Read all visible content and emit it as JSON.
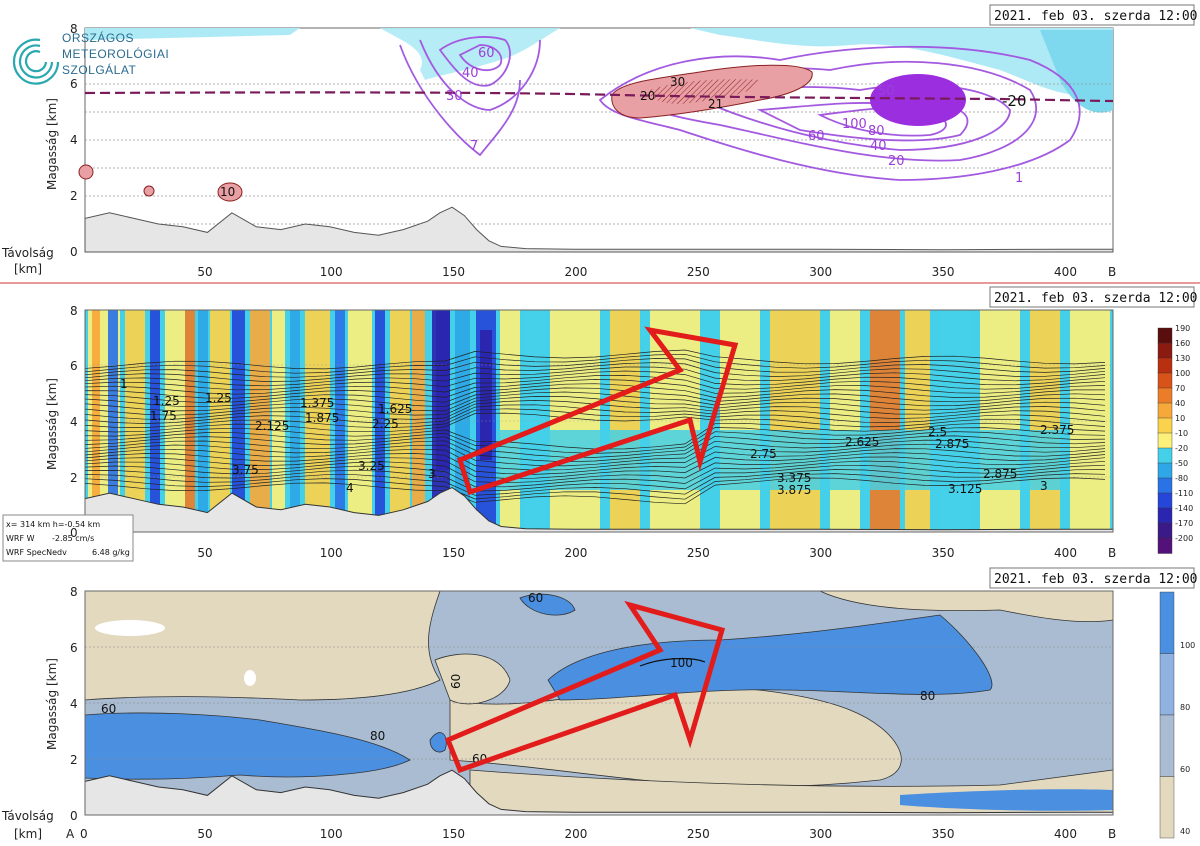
{
  "logo": {
    "lines": [
      "ORSZÁGOS",
      "METEOROLÓGIAI",
      "SZOLGÁLAT"
    ]
  },
  "x_ticks": [
    "50",
    "100",
    "150",
    "200",
    "250",
    "300",
    "350",
    "400"
  ],
  "x_end_label": "B",
  "x_start_label": "A",
  "x_zero_label": "0",
  "distance_label": "Távolság",
  "km_label": "[km]",
  "y_label": "Magasság [km]",
  "y_ticks": [
    "0",
    "2",
    "4",
    "6",
    "8"
  ],
  "panels": [
    {
      "title": "2021. feb 03. szerda 12:00"
    },
    {
      "title": "2021. feb 03. szerda 12:00"
    },
    {
      "title": "2021. feb 03. szerda 12:00"
    }
  ],
  "info_box": {
    "line1": "x= 314 km h=-0.54 km",
    "line2_label": "WRF W",
    "line2_value": "-2.85 cm/s",
    "line3_label": "WRF SpecNedv",
    "line3_value": "6.48 g/kg"
  },
  "colorbar2": {
    "labels": [
      "190",
      "160",
      "130",
      "100",
      "70",
      "40",
      "10",
      "-10",
      "-20",
      "-50",
      "-80",
      "-110",
      "-140",
      "-170",
      "-200"
    ],
    "colors": [
      "#5a0d0d",
      "#8b1a10",
      "#b8300f",
      "#d8531a",
      "#ec7d28",
      "#f6a83a",
      "#fbd24b",
      "#fbf07a",
      "#44d0e8",
      "#2da7e6",
      "#2a73e6",
      "#2546d8",
      "#2a26b0",
      "#3a1a86",
      "#52127a"
    ]
  },
  "colorbar3": {
    "labels": [
      "100",
      "80",
      "60",
      "40"
    ],
    "colors": [
      "#4a8fe0",
      "#8fb2e0",
      "#a9bcd2",
      "#e2d9bf"
    ]
  },
  "contour_labels_top": [
    "60",
    "40",
    "30",
    "7",
    "20",
    "30",
    "21",
    "50",
    "100",
    "80",
    "60",
    "40",
    "20",
    "1",
    "-20",
    "10"
  ],
  "contour_labels_mid": [
    "1",
    "1.25",
    "1.75",
    "1.25",
    "1.375",
    "1.625",
    "2.125",
    "1.875",
    "2.25",
    "3.75",
    "3",
    "4",
    "3.25",
    "2.75",
    "2.625",
    "2.5",
    "2.875",
    "2.375",
    "2.875",
    "3",
    "3.375",
    "3.125",
    "3.875"
  ],
  "contour_labels_bot": [
    "60",
    "80",
    "60",
    "100",
    "80",
    "60",
    "60",
    "80"
  ],
  "chart_data": [
    {
      "type": "area",
      "title": "2021. feb 03. szerda 12:00",
      "xlabel": "Távolság [km]",
      "ylabel": "Magasság [km]",
      "xlim": [
        0,
        420
      ],
      "ylim": [
        0,
        8
      ],
      "x_ticks": [
        50,
        100,
        150,
        200,
        250,
        300,
        350,
        400
      ],
      "y_ticks": [
        0,
        2,
        4,
        6,
        8
      ],
      "series": [
        {
          "name": "",
          "x": [
            0,
            10,
            20,
            30,
            40,
            50,
            60,
            70,
            80,
            90,
            100,
            110,
            120,
            130,
            140,
            145,
            150,
            155,
            160,
            165,
            170,
            180,
            200,
            250,
            300,
            350,
            400,
            420
          ],
          "values": [
            1.2,
            1.4,
            1.2,
            1.0,
            0.9,
            0.7,
            1.4,
            0.9,
            0.8,
            1.0,
            0.9,
            0.7,
            0.6,
            0.8,
            1.1,
            1.4,
            1.6,
            1.3,
            0.8,
            0.4,
            0.2,
            0.12,
            0.1,
            0.1,
            0.1,
            0.08,
            0.1,
            0.1
          ]
        },
        {
          "name": "",
          "x": [
            0,
            100,
            200,
            250,
            300,
            350,
            420
          ],
          "values": [
            5.7,
            5.7,
            5.7,
            5.6,
            5.5,
            5.5,
            5.4
          ]
        }
      ],
      "contour_labels": [
        "60",
        "40",
        "30",
        "7",
        "20",
        "30",
        "21",
        "50",
        "100",
        "80",
        "60",
        "40",
        "20",
        "1",
        "-20"
      ]
    },
    {
      "type": "heatmap",
      "title": "2021. feb 03. szerda 12:00",
      "ylabel": "Magasság [km]",
      "xlim": [
        0,
        420
      ],
      "ylim": [
        0,
        8
      ],
      "colorbar": [
        190,
        160,
        130,
        100,
        70,
        40,
        10,
        -10,
        -20,
        -50,
        -80,
        -110,
        -140,
        -170,
        -200
      ],
      "contour_labels": [
        1,
        1.25,
        1.375,
        1.625,
        1.75,
        1.875,
        2.125,
        2.25,
        2.375,
        2.5,
        2.625,
        2.75,
        2.875,
        3,
        3.125,
        3.25,
        3.375,
        3.75,
        3.875,
        4
      ]
    },
    {
      "type": "heatmap",
      "title": "2021. feb 03. szerda 12:00",
      "xlabel": "Távolság [km]",
      "ylabel": "Magasság [km]",
      "xlim": [
        0,
        420
      ],
      "ylim": [
        0,
        8
      ],
      "colorbar": [
        100,
        80,
        60,
        40
      ],
      "contour_labels": [
        60,
        80,
        100
      ]
    }
  ]
}
